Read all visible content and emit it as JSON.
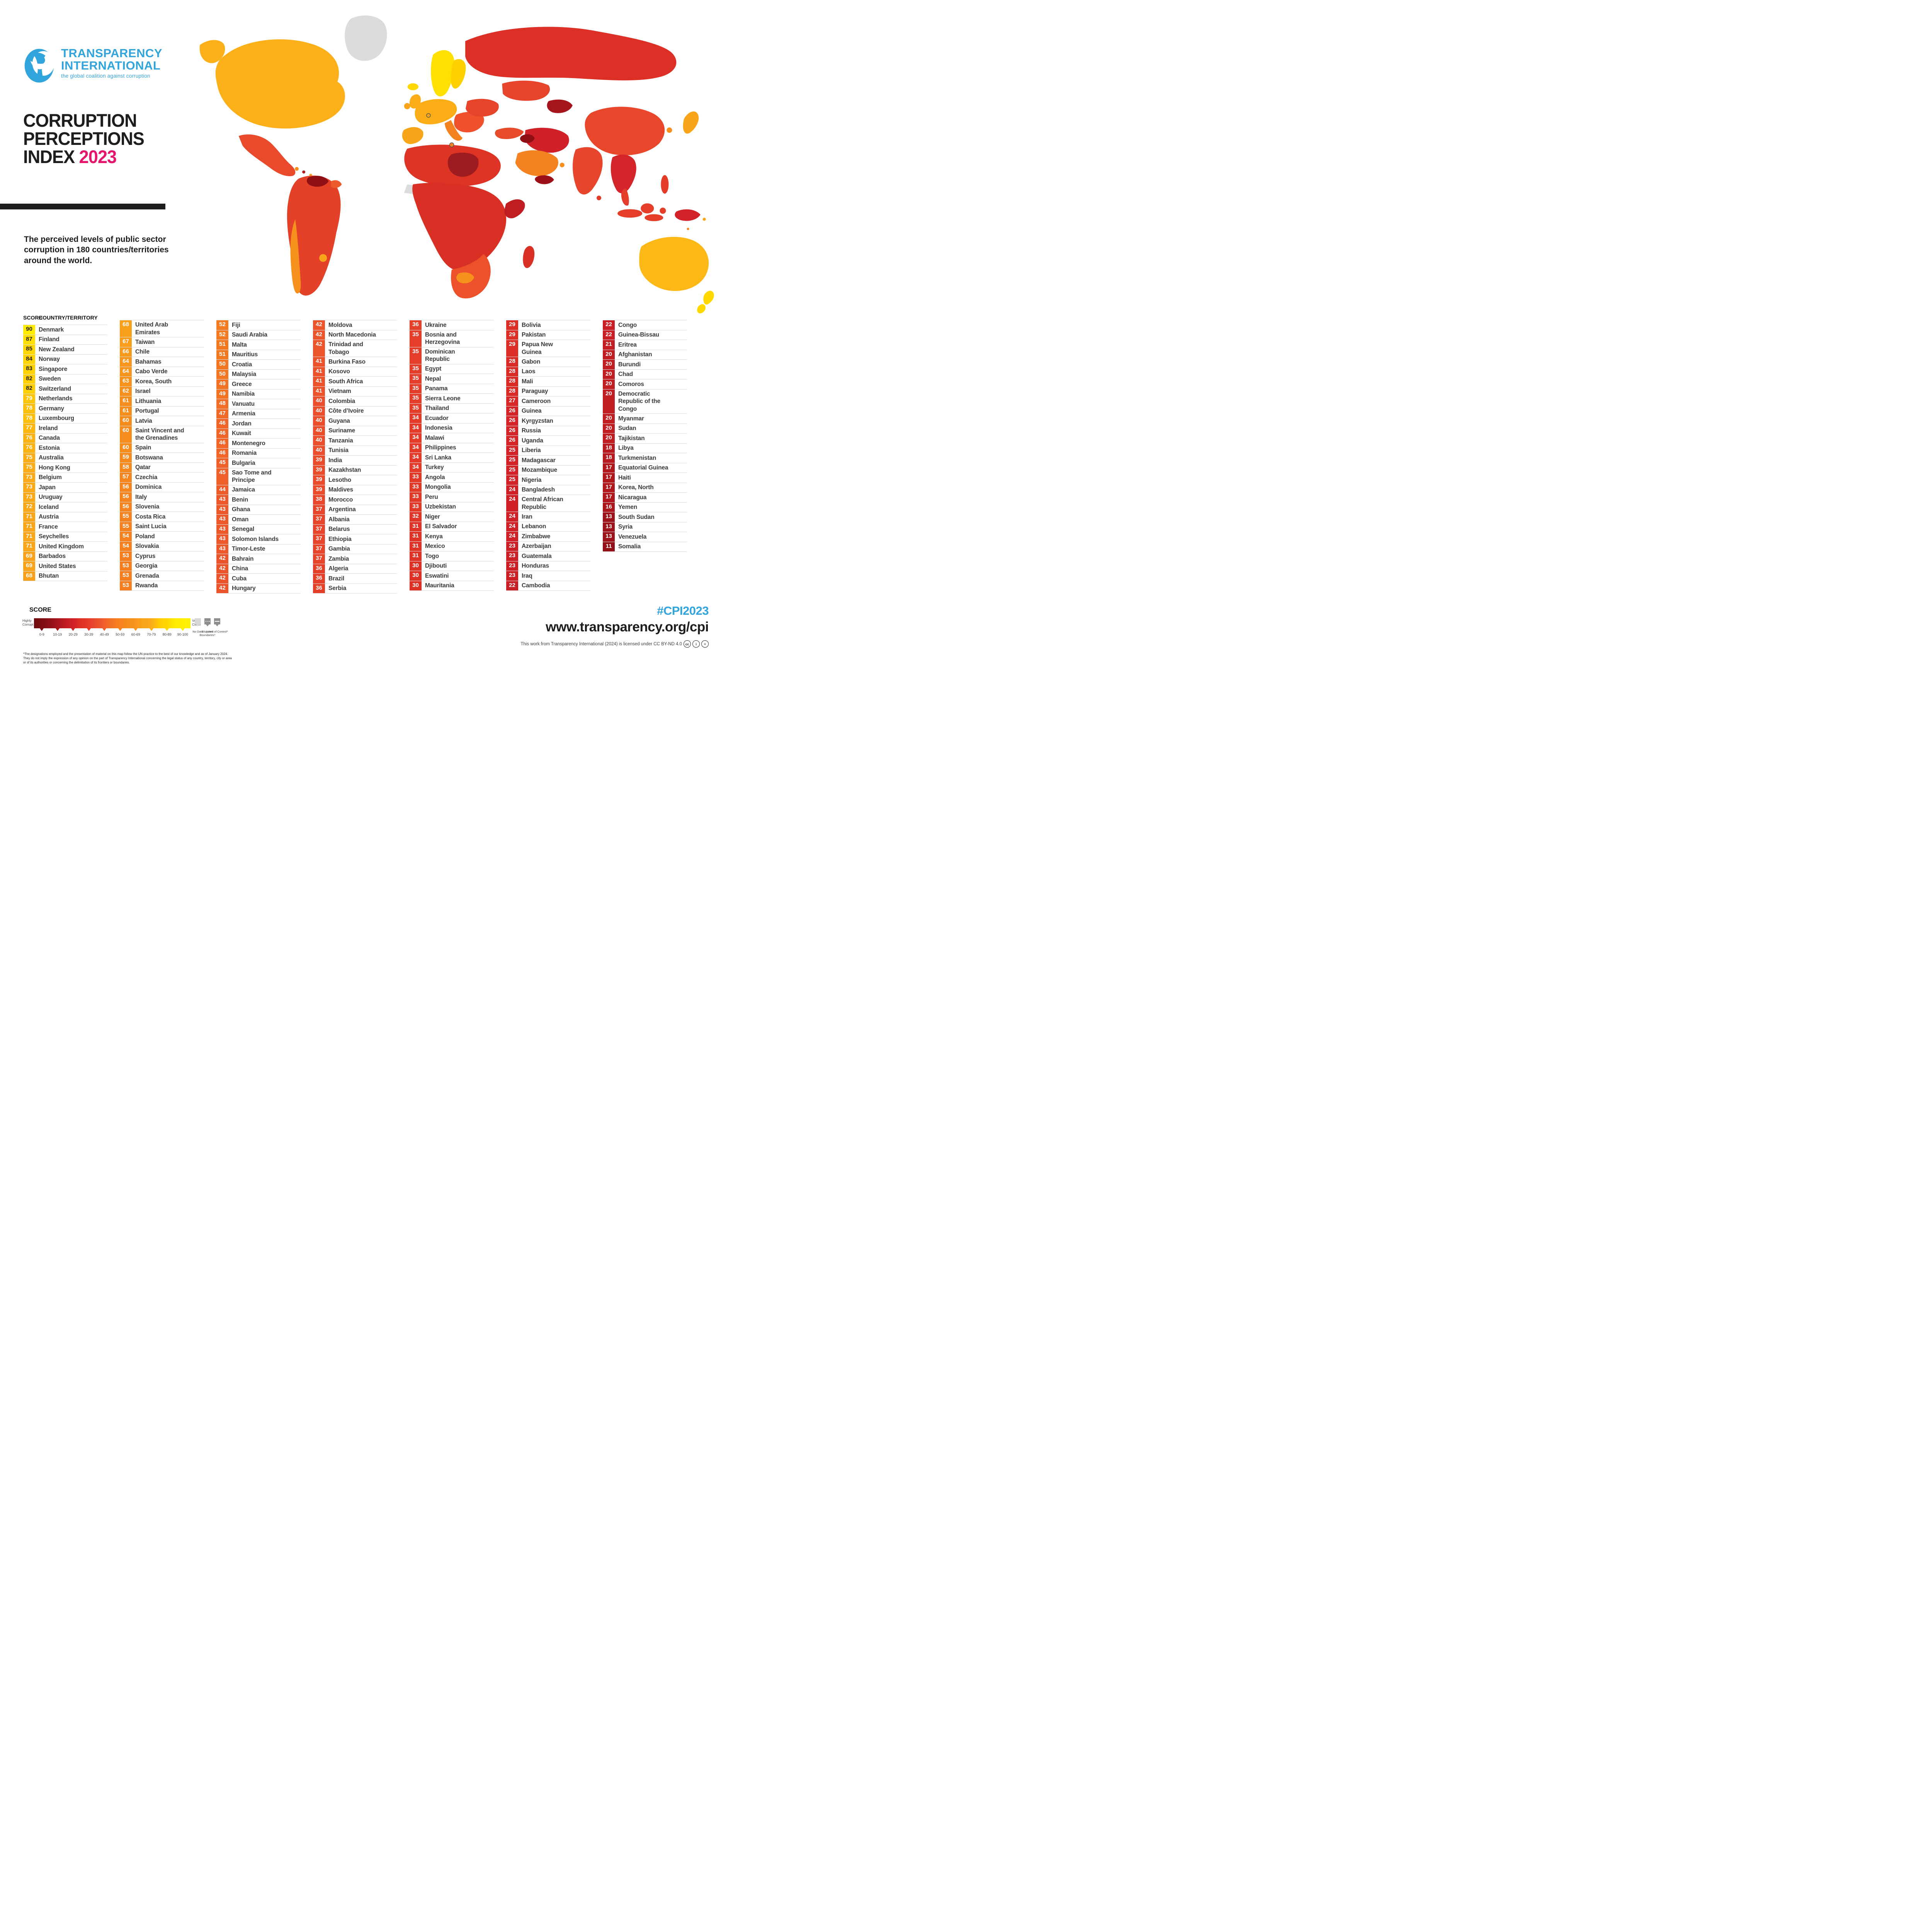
{
  "brand": {
    "name_line1": "TRANSPARENCY",
    "name_line2": "INTERNATIONAL",
    "tagline": "the global coalition against corruption"
  },
  "title": {
    "line1": "CORRUPTION",
    "line2": "PERCEPTIONS",
    "line3_word": "INDEX",
    "line3_year": "2023"
  },
  "subtitle": "The perceived levels of public sector corruption in 180 countries/territories around the world.",
  "list": {
    "score_header": "SCORE",
    "country_header": "COUNTRY/TERRITORY",
    "column_breaks": [
      0,
      26,
      52,
      79,
      106,
      132,
      158,
      180
    ]
  },
  "legend": {
    "title": "SCORE",
    "low_label_line1": "Highly",
    "low_label_line2": "Corrupt",
    "high_label_line1": "Very",
    "high_label_line2": "Clean",
    "ticks": [
      "0-9",
      "10-19",
      "20-29",
      "30-39",
      "40-49",
      "50-59",
      "60-69",
      "70-79",
      "80-89",
      "90-100"
    ],
    "no_data_label": "No Data",
    "disputed_label": "Disputed Boundaries*",
    "control_label": "Lines of Control*"
  },
  "footnote": "*The designations employed and the presentation of material on this map follow the UN practice to the best of our knowledge and as of January 2024. They do not imply the expression of any opinion on the part of Transparency International concerning the legal status of any country, territory, city or area or of its authorities or concerning the delimitation of its frontiers or boundaries.",
  "footer": {
    "hashtag": "#CPI2023",
    "url": "www.transparency.org/cpi",
    "license": "This work from Transparency International (2024) is licensed under CC BY-ND 4.0",
    "cc_icons": [
      "cc",
      "i",
      "="
    ]
  },
  "colors": {
    "blue": "#31A4DC",
    "pink": "#E5156B",
    "ink": "#1D1D1B",
    "no_data": "#D8D8D8",
    "swatch_gray": "#8E8E90",
    "chip_text_dark": "#231F20",
    "chip_text_light": "#FFFFFF",
    "scale": [
      [
        0,
        "#6D0B10"
      ],
      [
        10,
        "#8E1015"
      ],
      [
        15,
        "#A6151B"
      ],
      [
        20,
        "#C01D23"
      ],
      [
        25,
        "#D22127"
      ],
      [
        30,
        "#DF3026"
      ],
      [
        35,
        "#E43D2A"
      ],
      [
        40,
        "#EA4E2C"
      ],
      [
        45,
        "#F0602B"
      ],
      [
        50,
        "#F37722"
      ],
      [
        55,
        "#F5821F"
      ],
      [
        60,
        "#F68C1E"
      ],
      [
        65,
        "#F7971D"
      ],
      [
        70,
        "#F9A51A"
      ],
      [
        75,
        "#FAAC19"
      ],
      [
        80,
        "#FFCB05"
      ],
      [
        85,
        "#FFD800"
      ],
      [
        90,
        "#FFEC00"
      ],
      [
        100,
        "#FFF200"
      ]
    ]
  },
  "chart_data": {
    "type": "heatmap",
    "title": "Corruption Perceptions Index 2023",
    "value_range": [
      0,
      100
    ],
    "value_meaning": "0 = Highly Corrupt, 100 = Very Clean",
    "countries_total": 180,
    "rows": [
      [
        90,
        "Denmark"
      ],
      [
        87,
        "Finland"
      ],
      [
        85,
        "New Zealand"
      ],
      [
        84,
        "Norway"
      ],
      [
        83,
        "Singapore"
      ],
      [
        82,
        "Sweden"
      ],
      [
        82,
        "Switzerland"
      ],
      [
        79,
        "Netherlands"
      ],
      [
        78,
        "Germany"
      ],
      [
        78,
        "Luxembourg"
      ],
      [
        77,
        "Ireland"
      ],
      [
        76,
        "Canada"
      ],
      [
        76,
        "Estonia"
      ],
      [
        75,
        "Australia"
      ],
      [
        75,
        "Hong Kong"
      ],
      [
        73,
        "Belgium"
      ],
      [
        73,
        "Japan"
      ],
      [
        73,
        "Uruguay"
      ],
      [
        72,
        "Iceland"
      ],
      [
        71,
        "Austria"
      ],
      [
        71,
        "France"
      ],
      [
        71,
        "Seychelles"
      ],
      [
        71,
        "United Kingdom"
      ],
      [
        69,
        "Barbados"
      ],
      [
        69,
        "United States"
      ],
      [
        68,
        "Bhutan"
      ],
      [
        68,
        "United Arab Emirates"
      ],
      [
        67,
        "Taiwan"
      ],
      [
        66,
        "Chile"
      ],
      [
        64,
        "Bahamas"
      ],
      [
        64,
        "Cabo Verde"
      ],
      [
        63,
        "Korea, South"
      ],
      [
        62,
        "Israel"
      ],
      [
        61,
        "Lithuania"
      ],
      [
        61,
        "Portugal"
      ],
      [
        60,
        "Latvia"
      ],
      [
        60,
        "Saint Vincent and the Grenadines"
      ],
      [
        60,
        "Spain"
      ],
      [
        59,
        "Botswana"
      ],
      [
        58,
        "Qatar"
      ],
      [
        57,
        "Czechia"
      ],
      [
        56,
        "Dominica"
      ],
      [
        56,
        "Italy"
      ],
      [
        56,
        "Slovenia"
      ],
      [
        55,
        "Costa Rica"
      ],
      [
        55,
        "Saint Lucia"
      ],
      [
        54,
        "Poland"
      ],
      [
        54,
        "Slovakia"
      ],
      [
        53,
        "Cyprus"
      ],
      [
        53,
        "Georgia"
      ],
      [
        53,
        "Grenada"
      ],
      [
        53,
        "Rwanda"
      ],
      [
        52,
        "Fiji"
      ],
      [
        52,
        "Saudi Arabia"
      ],
      [
        51,
        "Malta"
      ],
      [
        51,
        "Mauritius"
      ],
      [
        50,
        "Croatia"
      ],
      [
        50,
        "Malaysia"
      ],
      [
        49,
        "Greece"
      ],
      [
        49,
        "Namibia"
      ],
      [
        48,
        "Vanuatu"
      ],
      [
        47,
        "Armenia"
      ],
      [
        46,
        "Jordan"
      ],
      [
        46,
        "Kuwait"
      ],
      [
        46,
        "Montenegro"
      ],
      [
        46,
        "Romania"
      ],
      [
        45,
        "Bulgaria"
      ],
      [
        45,
        "Sao Tome and Principe"
      ],
      [
        44,
        "Jamaica"
      ],
      [
        43,
        "Benin"
      ],
      [
        43,
        "Ghana"
      ],
      [
        43,
        "Oman"
      ],
      [
        43,
        "Senegal"
      ],
      [
        43,
        "Solomon Islands"
      ],
      [
        43,
        "Timor-Leste"
      ],
      [
        42,
        "Bahrain"
      ],
      [
        42,
        "China"
      ],
      [
        42,
        "Cuba"
      ],
      [
        42,
        "Hungary"
      ],
      [
        42,
        "Moldova"
      ],
      [
        42,
        "North Macedonia"
      ],
      [
        42,
        "Trinidad and Tobago"
      ],
      [
        41,
        "Burkina Faso"
      ],
      [
        41,
        "Kosovo"
      ],
      [
        41,
        "South Africa"
      ],
      [
        41,
        "Vietnam"
      ],
      [
        40,
        "Colombia"
      ],
      [
        40,
        "Côte d’Ivoire"
      ],
      [
        40,
        "Guyana"
      ],
      [
        40,
        "Suriname"
      ],
      [
        40,
        "Tanzania"
      ],
      [
        40,
        "Tunisia"
      ],
      [
        39,
        "India"
      ],
      [
        39,
        "Kazakhstan"
      ],
      [
        39,
        "Lesotho"
      ],
      [
        39,
        "Maldives"
      ],
      [
        38,
        "Morocco"
      ],
      [
        37,
        "Argentina"
      ],
      [
        37,
        "Albania"
      ],
      [
        37,
        "Belarus"
      ],
      [
        37,
        "Ethiopia"
      ],
      [
        37,
        "Gambia"
      ],
      [
        37,
        "Zambia"
      ],
      [
        36,
        "Algeria"
      ],
      [
        36,
        "Brazil"
      ],
      [
        36,
        "Serbia"
      ],
      [
        36,
        "Ukraine"
      ],
      [
        35,
        "Bosnia and Herzegovina"
      ],
      [
        35,
        "Dominican Republic"
      ],
      [
        35,
        "Egypt"
      ],
      [
        35,
        "Nepal"
      ],
      [
        35,
        "Panama"
      ],
      [
        35,
        "Sierra Leone"
      ],
      [
        35,
        "Thailand"
      ],
      [
        34,
        "Ecuador"
      ],
      [
        34,
        "Indonesia"
      ],
      [
        34,
        "Malawi"
      ],
      [
        34,
        "Philippines"
      ],
      [
        34,
        "Sri Lanka"
      ],
      [
        34,
        "Turkey"
      ],
      [
        33,
        "Angola"
      ],
      [
        33,
        "Mongolia"
      ],
      [
        33,
        "Peru"
      ],
      [
        33,
        "Uzbekistan"
      ],
      [
        32,
        "Niger"
      ],
      [
        31,
        "El Salvador"
      ],
      [
        31,
        "Kenya"
      ],
      [
        31,
        "Mexico"
      ],
      [
        31,
        "Togo"
      ],
      [
        30,
        "Djibouti"
      ],
      [
        30,
        "Eswatini"
      ],
      [
        30,
        "Mauritania"
      ],
      [
        29,
        "Bolivia"
      ],
      [
        29,
        "Pakistan"
      ],
      [
        29,
        "Papua New Guinea"
      ],
      [
        28,
        "Gabon"
      ],
      [
        28,
        "Laos"
      ],
      [
        28,
        "Mali"
      ],
      [
        28,
        "Paraguay"
      ],
      [
        27,
        "Cameroon"
      ],
      [
        26,
        "Guinea"
      ],
      [
        26,
        "Kyrgyzstan"
      ],
      [
        26,
        "Russia"
      ],
      [
        26,
        "Uganda"
      ],
      [
        25,
        "Liberia"
      ],
      [
        25,
        "Madagascar"
      ],
      [
        25,
        "Mozambique"
      ],
      [
        25,
        "Nigeria"
      ],
      [
        24,
        "Bangladesh"
      ],
      [
        24,
        "Central African Republic"
      ],
      [
        24,
        "Iran"
      ],
      [
        24,
        "Lebanon"
      ],
      [
        24,
        "Zimbabwe"
      ],
      [
        23,
        "Azerbaijan"
      ],
      [
        23,
        "Guatemala"
      ],
      [
        23,
        "Honduras"
      ],
      [
        23,
        "Iraq"
      ],
      [
        22,
        "Cambodia"
      ],
      [
        22,
        "Congo"
      ],
      [
        22,
        "Guinea-Bissau"
      ],
      [
        21,
        "Eritrea"
      ],
      [
        20,
        "Afghanistan"
      ],
      [
        20,
        "Burundi"
      ],
      [
        20,
        "Chad"
      ],
      [
        20,
        "Comoros"
      ],
      [
        20,
        "Democratic Republic of the Congo"
      ],
      [
        20,
        "Myanmar"
      ],
      [
        20,
        "Sudan"
      ],
      [
        20,
        "Tajikistan"
      ],
      [
        18,
        "Libya"
      ],
      [
        18,
        "Turkmenistan"
      ],
      [
        17,
        "Equatorial Guinea"
      ],
      [
        17,
        "Haiti"
      ],
      [
        17,
        "Korea, North"
      ],
      [
        17,
        "Nicaragua"
      ],
      [
        16,
        "Yemen"
      ],
      [
        13,
        "South Sudan"
      ],
      [
        13,
        "Syria"
      ],
      [
        13,
        "Venezuela"
      ],
      [
        11,
        "Somalia"
      ]
    ]
  }
}
